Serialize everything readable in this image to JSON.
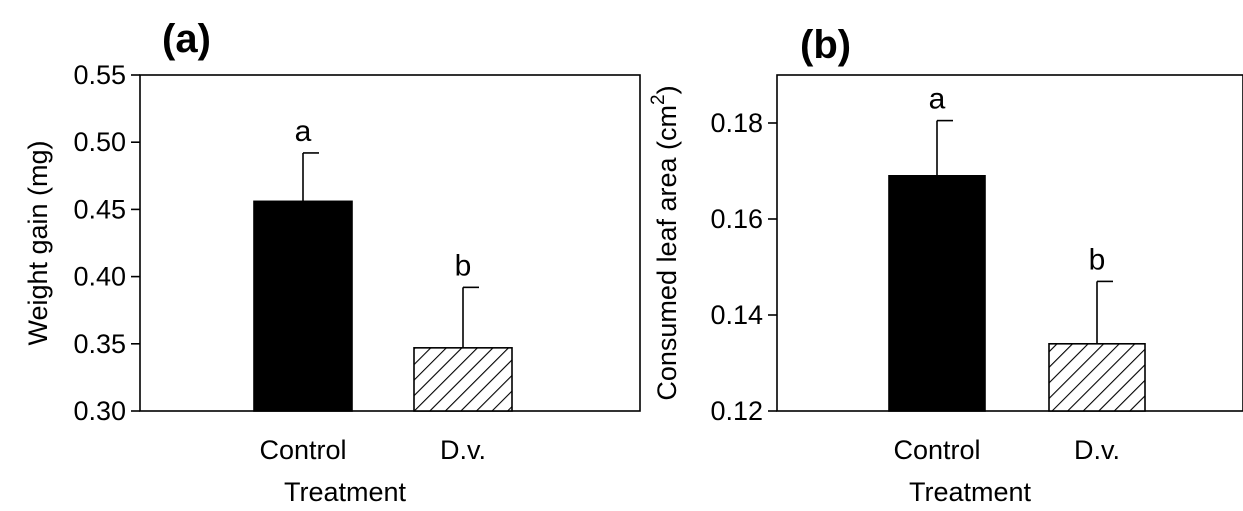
{
  "chart_data": [
    {
      "type": "bar",
      "panel_label": "(a)",
      "categories": [
        "Control",
        "D.v."
      ],
      "values": [
        0.456,
        0.347
      ],
      "error_upper": [
        0.492,
        0.392
      ],
      "significance": [
        "a",
        "b"
      ],
      "bar_fill": [
        "solid",
        "hatched"
      ],
      "xlabel": "Treatment",
      "ylabel": "Weight gain (mg)",
      "ylim": [
        0.3,
        0.55
      ],
      "yticks": [
        "0.30",
        "0.35",
        "0.40",
        "0.45",
        "0.50",
        "0.55"
      ],
      "grid": false
    },
    {
      "type": "bar",
      "panel_label": "(b)",
      "categories": [
        "Control",
        "D.v."
      ],
      "values": [
        0.169,
        0.134
      ],
      "error_upper": [
        0.1805,
        0.147
      ],
      "significance": [
        "a",
        "b"
      ],
      "bar_fill": [
        "solid",
        "hatched"
      ],
      "xlabel": "Treatment",
      "ylabel": "Consumed leaf area (cm",
      "ylabel_superscript": "2",
      "ylabel_suffix": ")",
      "ylim": [
        0.12,
        0.19
      ],
      "yticks": [
        "0.12",
        "0.14",
        "0.16",
        "0.18"
      ],
      "grid": false
    }
  ],
  "colors": {
    "bar_solid": "#000000",
    "hatch_stroke": "#000000",
    "axis": "#000000"
  }
}
